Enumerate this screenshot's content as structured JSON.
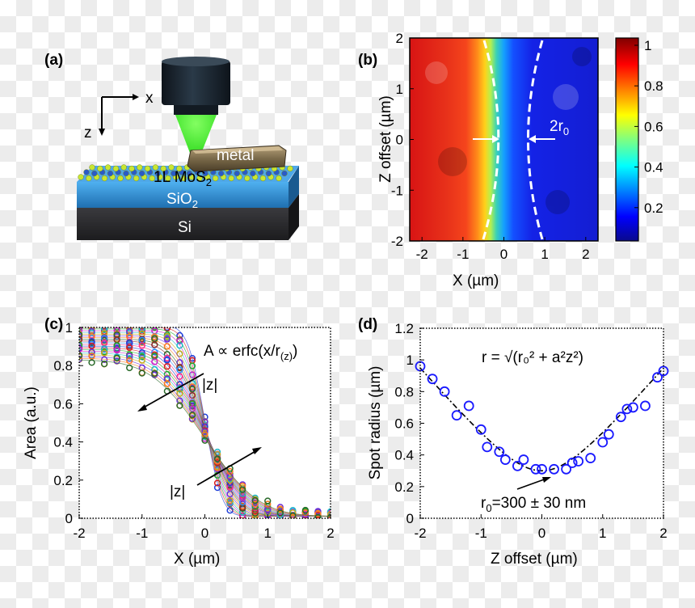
{
  "figure": {
    "panel_a": {
      "label": "(a)",
      "axis_x": "x",
      "axis_z": "z",
      "metal": "metal",
      "mos2": "1L MoS",
      "mos2_sub": "2",
      "sio2": "SiO",
      "sio2_sub": "2",
      "si": "Si",
      "colors": {
        "beam": "#39ff14",
        "objective": "#1c2630",
        "sio2": "#2f8fd6",
        "si": "#2d2d30",
        "metal": "#8a7a5c"
      }
    },
    "panel_b": {
      "label": "(b)",
      "annotation": "2r",
      "annotation_sub": "0",
      "colorbar_ticks": [
        "1",
        "0.8",
        "0.6",
        "0.4",
        "0.2"
      ]
    },
    "panel_c": {
      "label": "(c)",
      "formula": "A ∝ erfc(x/r",
      "formula_sub": "(z)",
      "formula_end": ")",
      "z_label_upper": "|z|",
      "z_label_lower": "|z|"
    },
    "panel_d": {
      "label": "(d)",
      "formula": "r = √(r₀² + a²z²)",
      "r0_prefix": "r",
      "r0_sub": "0",
      "r0_text": "=300 ± 30 nm"
    }
  },
  "chart_data": [
    {
      "panel": "b",
      "type": "heatmap",
      "xlabel": "X (µm)",
      "ylabel": "Z offset (µm)",
      "xlim": [
        -2.3,
        2.3
      ],
      "ylim": [
        -2,
        2
      ],
      "xticks": [
        "-2",
        "-1",
        "0",
        "1",
        "2"
      ],
      "yticks": [
        "2",
        "1",
        "0",
        "-1",
        "-2"
      ],
      "colorbar_range": [
        0,
        1
      ],
      "colormap": "jet",
      "edge_center_x": 0.0,
      "contour_label": "2r0"
    },
    {
      "panel": "c",
      "type": "scatter",
      "xlabel": "X (µm)",
      "ylabel": "Area (a.u.)",
      "xlim": [
        -2,
        2
      ],
      "ylim": [
        0,
        1
      ],
      "xticks": [
        "-2",
        "-1",
        "0",
        "1",
        "2"
      ],
      "yticks": [
        "0",
        "0.2",
        "0.4",
        "0.6",
        "0.8",
        "1"
      ],
      "model": "A ∝ erfc(x/r(z))",
      "series_count": 21,
      "x": [
        -2.0,
        -1.8,
        -1.6,
        -1.4,
        -1.2,
        -1.0,
        -0.8,
        -0.6,
        -0.4,
        -0.2,
        0.0,
        0.2,
        0.4,
        0.6,
        0.8,
        1.0,
        1.2,
        1.4,
        1.6,
        1.8,
        2.0
      ],
      "r_range_um": [
        0.3,
        0.95
      ],
      "colors": [
        "#1f3fd8",
        "#d81f1f",
        "#1fa82a",
        "#c81fc8",
        "#1fb8c8",
        "#c8a81f",
        "#6a2fd8",
        "#ff7a1f",
        "#2a6a2a",
        "#8a2a2a",
        "#2a8aff",
        "#ff2a8a"
      ]
    },
    {
      "panel": "d",
      "type": "scatter",
      "xlabel": "Z offset (µm)",
      "ylabel": "Spot radius (µm)",
      "xlim": [
        -2,
        2
      ],
      "ylim": [
        0,
        1.2
      ],
      "xticks": [
        "-2",
        "-1",
        "0",
        "1",
        "2"
      ],
      "yticks": [
        "0",
        "0.2",
        "0.4",
        "0.6",
        "0.8",
        "1",
        "1.2"
      ],
      "series": [
        {
          "x": [
            -2.0,
            -1.8,
            -1.6,
            -1.4,
            -1.2,
            -1.0,
            -0.9,
            -0.7,
            -0.6,
            -0.4,
            -0.3,
            -0.1,
            0.0,
            0.2,
            0.4,
            0.5,
            0.6,
            0.8,
            1.0,
            1.1,
            1.3,
            1.4,
            1.5,
            1.7,
            1.9,
            2.0
          ],
          "y": [
            0.96,
            0.88,
            0.8,
            0.65,
            0.71,
            0.56,
            0.45,
            0.42,
            0.37,
            0.33,
            0.37,
            0.31,
            0.31,
            0.31,
            0.31,
            0.35,
            0.36,
            0.38,
            0.48,
            0.53,
            0.64,
            0.69,
            0.7,
            0.71,
            0.89,
            0.93
          ]
        }
      ],
      "fit": {
        "r0": 0.3,
        "a": 0.45
      },
      "marker_color": "#1a1aff"
    }
  ]
}
